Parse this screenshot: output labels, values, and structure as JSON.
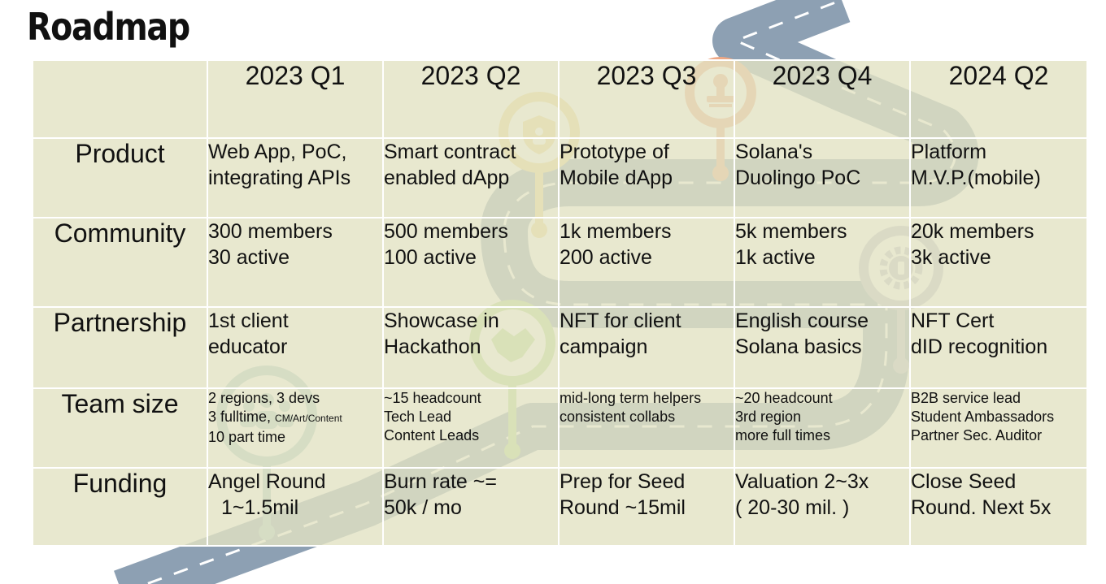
{
  "slide": {
    "title": "Roadmap",
    "columns": [
      "2023 Q1",
      "2023 Q2",
      "2023 Q3",
      "2023 Q4",
      "2024 Q2"
    ],
    "rows": [
      {
        "label": "Product",
        "cells": [
          [
            "Web App, PoC,",
            "integrating APIs"
          ],
          [
            "Smart contract",
            "enabled dApp"
          ],
          [
            "Prototype of",
            "Mobile dApp"
          ],
          [
            "Solana's",
            "Duolingo PoC"
          ],
          [
            "Platform",
            "M.V.P.(mobile)"
          ]
        ]
      },
      {
        "label": "Community",
        "cells": [
          [
            "300 members",
            "30 active"
          ],
          [
            "500 members",
            "100 active"
          ],
          [
            "1k members",
            "200 active"
          ],
          [
            "5k members",
            "1k active"
          ],
          [
            "20k members",
            "3k active"
          ]
        ]
      },
      {
        "label": "Partnership",
        "cells": [
          [
            "1st client",
            "educator"
          ],
          [
            "Showcase in",
            "Hackathon"
          ],
          [
            "NFT for client",
            "campaign"
          ],
          [
            "English course",
            "Solana basics"
          ],
          [
            "NFT Cert",
            "dID recognition"
          ]
        ]
      },
      {
        "label": "Team size",
        "cells": [
          [
            "2 regions, 3 devs",
            "3 fulltime,",
            "10 part time"
          ],
          [
            "~15 headcount",
            "Tech Lead",
            "Content Leads"
          ],
          [
            "mid-long term helpers",
            "consistent collabs"
          ],
          [
            "~20 headcount",
            "3rd region",
            "more full times"
          ],
          [
            "B2B service lead",
            "Student Ambassadors",
            "Partner Sec. Auditor"
          ]
        ],
        "note": "CM/Art/Content"
      },
      {
        "label": "Funding",
        "cells": [
          [
            "Angel Round",
            "1~1.5mil"
          ],
          [
            "Burn rate ~=",
            "50k / mo"
          ],
          [
            "Prep for Seed",
            "Round ~15mil"
          ],
          [
            "Valuation 2~3x",
            "( 20-30 mil. )"
          ],
          [
            "Close Seed",
            "Round. Next 5x"
          ]
        ]
      }
    ],
    "colors": {
      "cell_fill": "#e2e2c3",
      "road": "#8da0b3",
      "road_dash": "#ffffff",
      "pin_teal": "#a7c7c9",
      "pin_green": "#b6d98e",
      "pin_yellow": "#efd68c",
      "pin_orange": "#eda784",
      "pin_lavender": "#b9b8cd"
    },
    "icons": [
      "people-icon",
      "handshake-icon",
      "shield-user-icon",
      "stamp-icon",
      "gear-icon"
    ]
  }
}
